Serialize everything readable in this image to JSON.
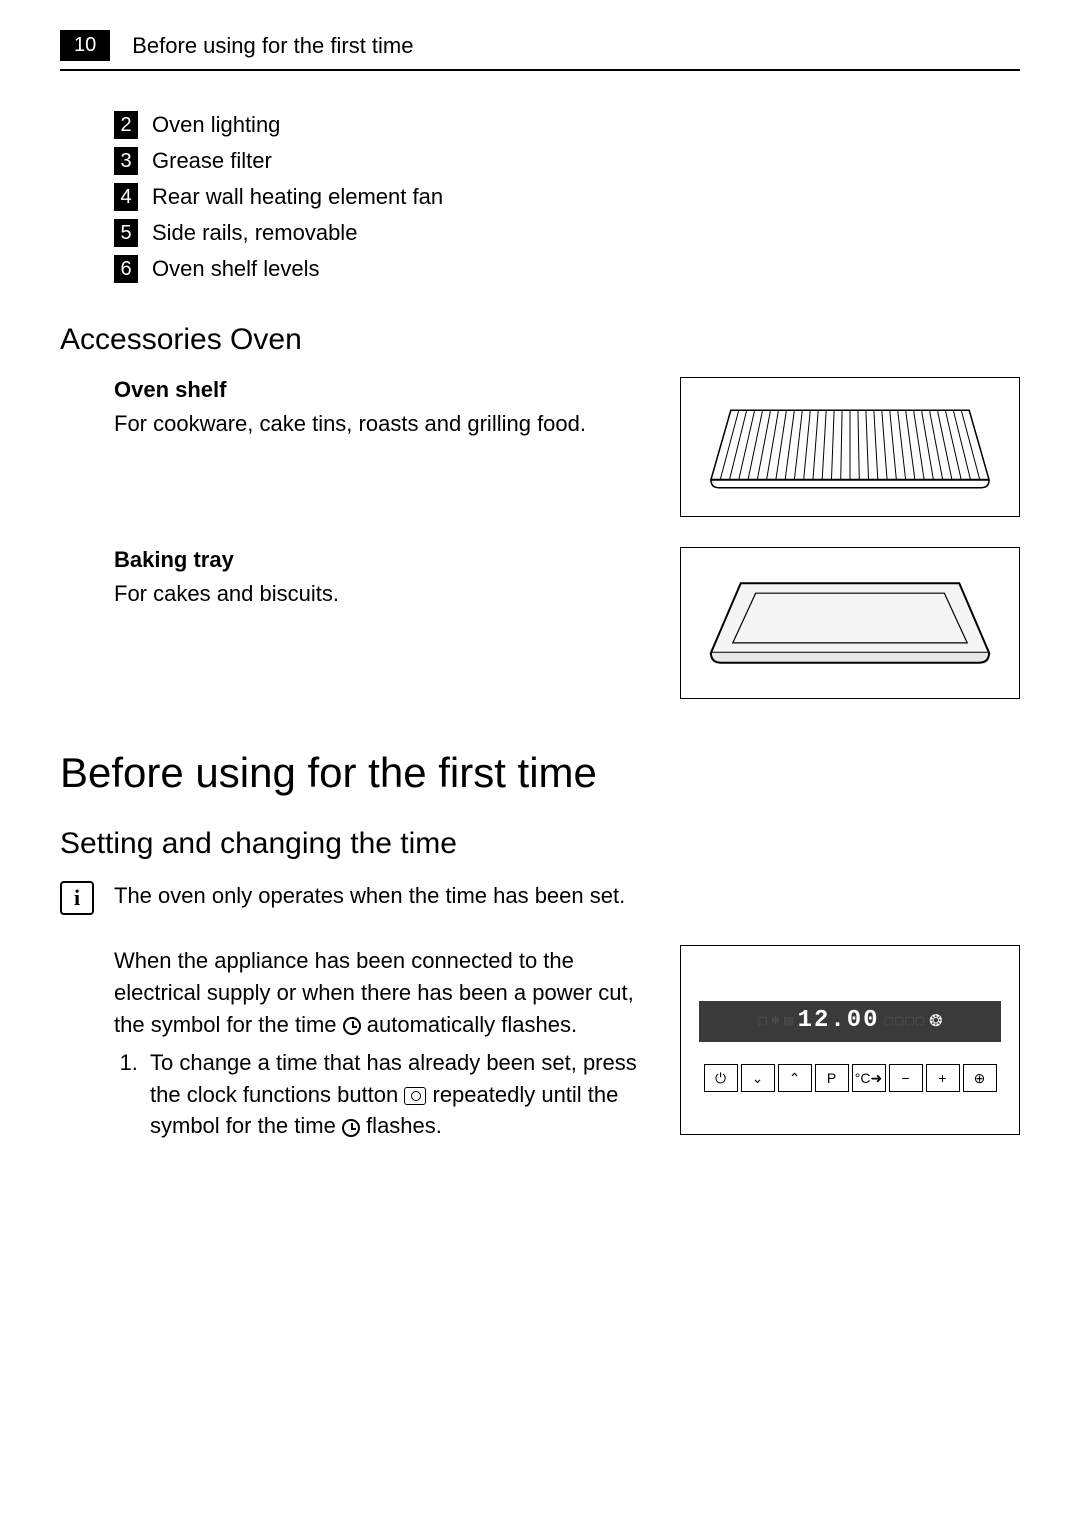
{
  "page_number": "10",
  "header_title": "Before using for the first time",
  "numbered_items": [
    {
      "num": "2",
      "text": "Oven lighting"
    },
    {
      "num": "3",
      "text": "Grease filter"
    },
    {
      "num": "4",
      "text": "Rear wall heating element fan"
    },
    {
      "num": "5",
      "text": "Side rails, removable"
    },
    {
      "num": "6",
      "text": "Oven shelf levels"
    }
  ],
  "accessories_heading": "Accessories Oven",
  "accessories": [
    {
      "title": "Oven shelf",
      "desc": "For cookware, cake tins, roasts and grilling food.",
      "figure_type": "shelf"
    },
    {
      "title": "Baking tray",
      "desc": "For cakes and biscuits.",
      "figure_type": "tray"
    }
  ],
  "main_heading": "Before using for the first time",
  "sub_heading": "Setting and changing the time",
  "info_note": "The oven only operates when the time has been set.",
  "instruction_para1_a": "When the appliance has been connected to the electrical supply or when there has been a power cut, the symbol for the time ",
  "instruction_para1_b": " automatically flashes.",
  "step1_a": "To change a time that has already been set, press the clock functions button ",
  "step1_b": " repeatedly until the symbol for the time ",
  "step1_c": " flashes.",
  "display_time": "12.00",
  "control_buttons": [
    "⏻",
    "⌄",
    "⌃",
    "P",
    "°C➜",
    "−",
    "+",
    "⊕"
  ],
  "colors": {
    "text": "#000000",
    "bg": "#ffffff",
    "badge_bg": "#000000",
    "badge_fg": "#ffffff",
    "display_bg": "#3a3a3a",
    "display_inactive": "#555555"
  },
  "fonts": {
    "body_size": 22,
    "h1_size": 42,
    "h2_size": 30
  }
}
